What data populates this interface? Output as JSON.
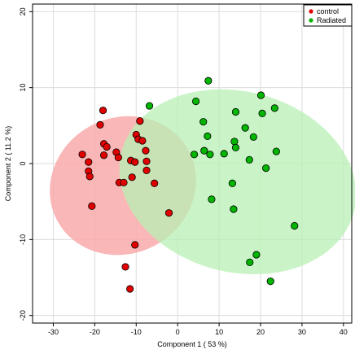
{
  "chart_data": {
    "type": "scatter",
    "xlabel": "Component 1 ( 53 %)",
    "ylabel": "Component 2 ( 11.2 %)",
    "xlim": [
      -35,
      42
    ],
    "ylim": [
      -21,
      21
    ],
    "x_ticks": [
      -30,
      -20,
      -10,
      0,
      10,
      20,
      30,
      40
    ],
    "y_ticks": [
      -20,
      -10,
      0,
      10,
      20
    ],
    "x_tick_labels": [
      "-30",
      "-20",
      "-10",
      "0",
      "10",
      "20",
      "30",
      "40"
    ],
    "y_tick_labels": [
      "-20",
      "-10",
      "0",
      "10",
      "20"
    ],
    "grid": true,
    "legend_position": "top-right",
    "series": [
      {
        "name": "control",
        "color": "#e00000",
        "ellipse_fill": "#f9aaaa",
        "ellipse": {
          "cx": -13.2,
          "cy": -2.9,
          "rx": 16.4,
          "ry": 9.8,
          "angle_deg": 62.5
        },
        "points": [
          [
            -23.0,
            1.2
          ],
          [
            -21.5,
            0.2
          ],
          [
            -21.5,
            -1.0
          ],
          [
            -21.2,
            -1.7
          ],
          [
            -20.7,
            -5.6
          ],
          [
            -18.7,
            5.1
          ],
          [
            -18.0,
            7.0
          ],
          [
            -17.8,
            2.6
          ],
          [
            -17.8,
            1.1
          ],
          [
            -17.1,
            2.2
          ],
          [
            -14.8,
            1.5
          ],
          [
            -14.3,
            0.8
          ],
          [
            -14.1,
            -2.5
          ],
          [
            -13.0,
            -2.5
          ],
          [
            -11.3,
            0.4
          ],
          [
            -11.0,
            -1.8
          ],
          [
            -10.3,
            0.2
          ],
          [
            -10.3,
            -10.7
          ],
          [
            -10.0,
            3.8
          ],
          [
            -9.5,
            3.2
          ],
          [
            -9.1,
            5.6
          ],
          [
            -8.5,
            3.0
          ],
          [
            -7.7,
            1.7
          ],
          [
            -7.5,
            0.3
          ],
          [
            -7.5,
            -0.9
          ],
          [
            -5.6,
            -2.6
          ],
          [
            -2.1,
            -6.5
          ],
          [
            -12.6,
            -13.6
          ],
          [
            -11.5,
            -16.5
          ]
        ]
      },
      {
        "name": "Radiated",
        "color": "#00b400",
        "ellipse_fill": "#b8f0b4",
        "ellipse": {
          "cx": 14.5,
          "cy": -2.4,
          "rx": 21.8,
          "ry": 15.8,
          "angle_deg": 104.5
        },
        "points": [
          [
            -6.8,
            7.6
          ],
          [
            4.0,
            1.2
          ],
          [
            4.4,
            8.2
          ],
          [
            6.2,
            5.5
          ],
          [
            6.4,
            1.7
          ],
          [
            7.2,
            3.6
          ],
          [
            7.4,
            10.9
          ],
          [
            7.8,
            1.2
          ],
          [
            8.2,
            -4.7
          ],
          [
            11.2,
            1.3
          ],
          [
            13.2,
            -2.6
          ],
          [
            13.5,
            -6.0
          ],
          [
            13.7,
            2.9
          ],
          [
            14.0,
            6.8
          ],
          [
            14.0,
            2.1
          ],
          [
            16.3,
            4.7
          ],
          [
            17.3,
            0.5
          ],
          [
            17.4,
            -13.0
          ],
          [
            18.3,
            3.5
          ],
          [
            19.0,
            -12.0
          ],
          [
            20.1,
            9.0
          ],
          [
            20.4,
            6.6
          ],
          [
            21.3,
            -0.6
          ],
          [
            22.4,
            -15.5
          ],
          [
            23.4,
            7.3
          ],
          [
            23.8,
            1.6
          ],
          [
            28.2,
            -8.2
          ]
        ]
      }
    ]
  }
}
